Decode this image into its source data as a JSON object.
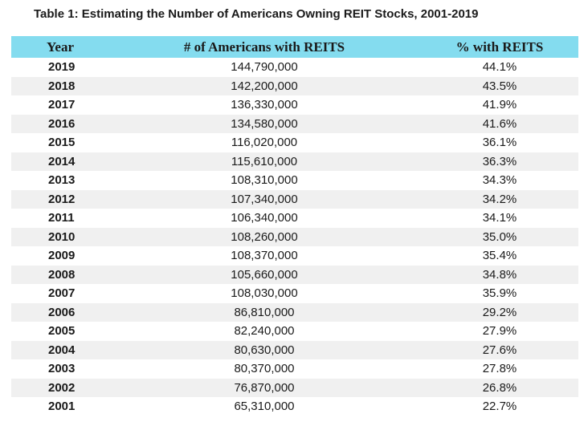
{
  "chart_data": {
    "type": "table",
    "title": "Table 1: Estimating the Number of Americans Owning REIT Stocks, 2001-2019",
    "columns": [
      "Year",
      "# of Americans with REITS",
      "% with REITS"
    ],
    "rows": [
      {
        "year": "2019",
        "americans": "144,790,000",
        "percent": "44.1%"
      },
      {
        "year": "2018",
        "americans": "142,200,000",
        "percent": "43.5%"
      },
      {
        "year": "2017",
        "americans": "136,330,000",
        "percent": "41.9%"
      },
      {
        "year": "2016",
        "americans": "134,580,000",
        "percent": "41.6%"
      },
      {
        "year": "2015",
        "americans": "116,020,000",
        "percent": "36.1%"
      },
      {
        "year": "2014",
        "americans": "115,610,000",
        "percent": "36.3%"
      },
      {
        "year": "2013",
        "americans": "108,310,000",
        "percent": "34.3%"
      },
      {
        "year": "2012",
        "americans": "107,340,000",
        "percent": "34.2%"
      },
      {
        "year": "2011",
        "americans": "106,340,000",
        "percent": "34.1%"
      },
      {
        "year": "2010",
        "americans": "108,260,000",
        "percent": "35.0%"
      },
      {
        "year": "2009",
        "americans": "108,370,000",
        "percent": "35.4%"
      },
      {
        "year": "2008",
        "americans": "105,660,000",
        "percent": "34.8%"
      },
      {
        "year": "2007",
        "americans": "108,030,000",
        "percent": "35.9%"
      },
      {
        "year": "2006",
        "americans": "86,810,000",
        "percent": "29.2%"
      },
      {
        "year": "2005",
        "americans": "82,240,000",
        "percent": "27.9%"
      },
      {
        "year": "2004",
        "americans": "80,630,000",
        "percent": "27.6%"
      },
      {
        "year": "2003",
        "americans": "80,370,000",
        "percent": "27.8%"
      },
      {
        "year": "2002",
        "americans": "76,870,000",
        "percent": "26.8%"
      },
      {
        "year": "2001",
        "americans": "65,310,000",
        "percent": "22.7%"
      }
    ],
    "layout": {
      "legend": "none",
      "grid": "off",
      "striped_rows": true
    }
  },
  "colors": {
    "header_bg": "#84dcef",
    "alt_row_bg": "#f0f0f0",
    "text": "#1a1a1a"
  }
}
